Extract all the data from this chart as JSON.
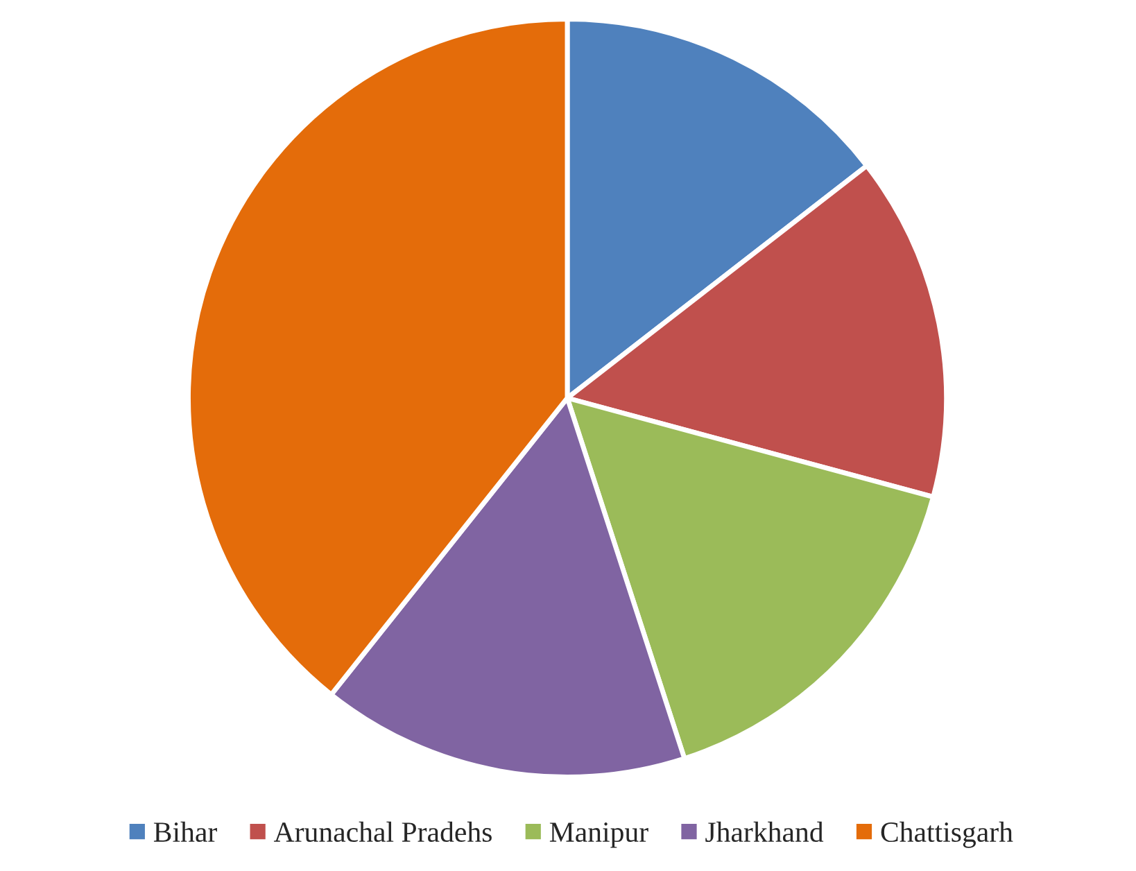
{
  "chart_data": {
    "type": "pie",
    "categories": [
      "Bihar",
      "Arunachal Pradehs",
      "Manipur",
      "Jharkhand",
      "Chattisgarh"
    ],
    "values": [
      14.5,
      14.7,
      15.8,
      15.7,
      39.3
    ],
    "colors": [
      "#4f81bd",
      "#c0504d",
      "#9bbb59",
      "#8064a2",
      "#e46c0a"
    ],
    "legend": "bottom"
  }
}
